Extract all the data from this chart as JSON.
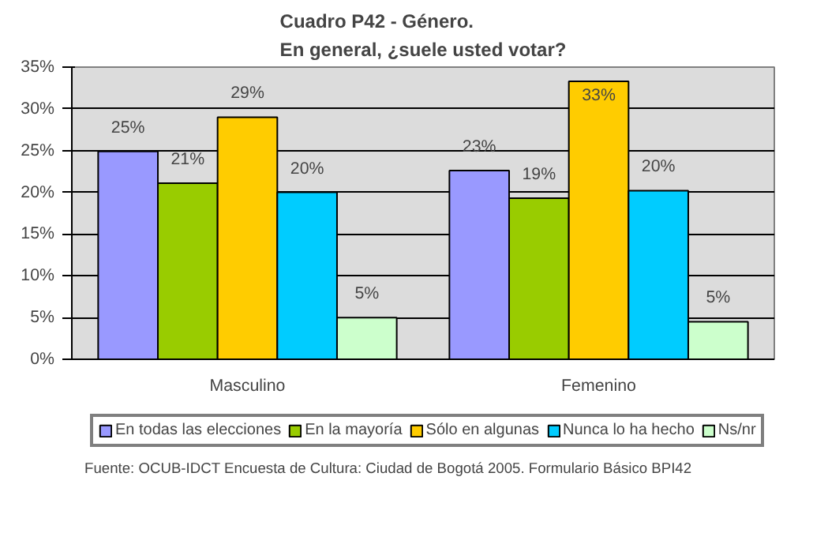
{
  "chart_data": {
    "type": "bar",
    "title": "Cuadro P42 - Género.\nEn general, ¿suele usted votar?",
    "categories": [
      "Masculino",
      "Femenino"
    ],
    "series": [
      {
        "name": "En todas las elecciones",
        "color": "#9999ff",
        "values": [
          24.9,
          22.6
        ],
        "value_labels": [
          "25%",
          "23%"
        ]
      },
      {
        "name": "En la mayoría",
        "color": "#99cc00",
        "values": [
          21.1,
          19.3
        ],
        "value_labels": [
          "21%",
          "19%"
        ]
      },
      {
        "name": "Sólo en algunas",
        "color": "#ffcc00",
        "values": [
          29.0,
          33.3
        ],
        "value_labels": [
          "29%",
          "33%"
        ]
      },
      {
        "name": "Nunca lo ha hecho",
        "color": "#00ccff",
        "values": [
          20.0,
          20.2
        ],
        "value_labels": [
          "20%",
          "20%"
        ]
      },
      {
        "name": "Ns/nr",
        "color": "#ccffcc",
        "values": [
          5.0,
          4.5
        ],
        "value_labels": [
          "5%",
          "5%"
        ]
      }
    ],
    "ylim": [
      0,
      35
    ],
    "yticks": [
      {
        "value": 0,
        "label": "0%"
      },
      {
        "value": 5,
        "label": "5%"
      },
      {
        "value": 10,
        "label": "10%"
      },
      {
        "value": 15,
        "label": "15%"
      },
      {
        "value": 20,
        "label": "20%"
      },
      {
        "value": 25,
        "label": "25%"
      },
      {
        "value": 30,
        "label": "30%"
      },
      {
        "value": 35,
        "label": "35%"
      }
    ],
    "grid": "y",
    "legend": "bottom",
    "annotations": [
      "Fuente: OCUB-IDCT Encuesta de Cultura: Ciudad de Bogotá 2005. Formulario Básico BPI42"
    ]
  }
}
